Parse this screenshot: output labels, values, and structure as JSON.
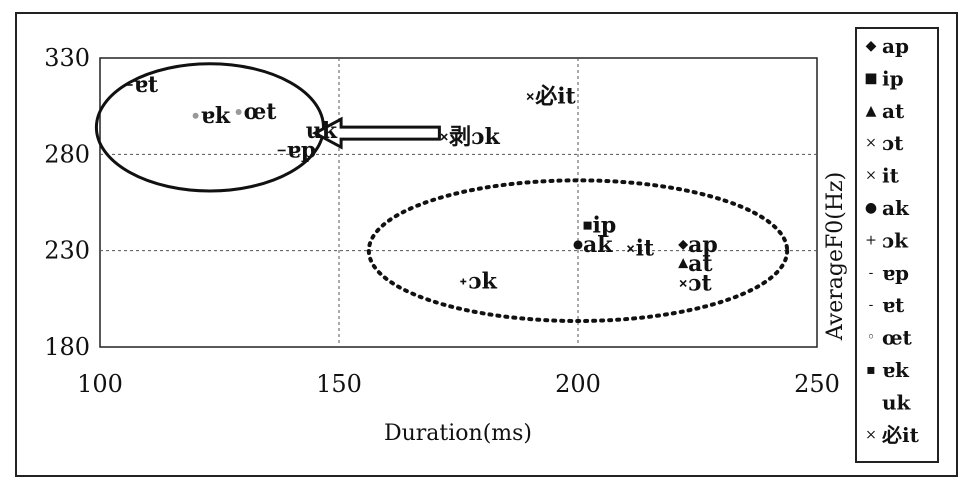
{
  "chart_data": {
    "type": "scatter",
    "xlabel": "Duration(ms)",
    "ylabel": "AverageF0(Hz)",
    "xlim": [
      100,
      250
    ],
    "ylim": [
      180,
      330
    ],
    "x_ticks": [
      100,
      150,
      200,
      250
    ],
    "y_ticks": [
      180,
      230,
      280,
      330
    ],
    "grid": "dashed at x=150, x=200, y=280, y=230",
    "legend_position": "right, outside plot",
    "series": [
      {
        "name": "ap",
        "marker": "diamond",
        "points": [
          {
            "x": 222,
            "y": 233,
            "label": "ap"
          }
        ]
      },
      {
        "name": "ip",
        "marker": "square",
        "points": [
          {
            "x": 202,
            "y": 243,
            "label": "ip"
          }
        ]
      },
      {
        "name": "at",
        "marker": "triangle",
        "points": [
          {
            "x": 222,
            "y": 223,
            "label": "at"
          }
        ]
      },
      {
        "name": "ɔt",
        "marker": "x",
        "points": [
          {
            "x": 222,
            "y": 213,
            "label": "ɔt"
          }
        ]
      },
      {
        "name": "it",
        "marker": "x",
        "points": [
          {
            "x": 211,
            "y": 231,
            "label": "it"
          }
        ]
      },
      {
        "name": "ak",
        "marker": "circle",
        "points": [
          {
            "x": 200,
            "y": 233,
            "label": "ak"
          }
        ]
      },
      {
        "name": "ɔk",
        "marker": "plus",
        "points": [
          {
            "x": 176,
            "y": 214,
            "label": "ɔk"
          }
        ]
      },
      {
        "name": "ɐp",
        "marker": "dash",
        "points": [
          {
            "x": 138,
            "y": 282,
            "label": "ɐp"
          }
        ]
      },
      {
        "name": "ɐt",
        "marker": "dash",
        "points": [
          {
            "x": 106,
            "y": 316,
            "label": "ɐt"
          }
        ]
      },
      {
        "name": "œt",
        "marker": "dot",
        "points": [
          {
            "x": 129,
            "y": 302,
            "label": "œt"
          }
        ]
      },
      {
        "name": "ɐk",
        "marker": "dot",
        "points": [
          {
            "x": 120,
            "y": 300,
            "label": "ɐk"
          }
        ]
      },
      {
        "name": "uk",
        "marker": "none",
        "points": [
          {
            "x": 142,
            "y": 292,
            "label": "uk"
          }
        ]
      },
      {
        "name": "必it",
        "marker": "x",
        "points": [
          {
            "x": 190,
            "y": 310,
            "label": "必it"
          }
        ]
      },
      {
        "name": "剥ɔk",
        "marker": "x",
        "points": [
          {
            "x": 172,
            "y": 289,
            "label": "剥ɔk"
          }
        ]
      }
    ],
    "legend_items": [
      {
        "symbol": "◆",
        "label": "ap"
      },
      {
        "symbol": "■",
        "label": "ip"
      },
      {
        "symbol": "▲",
        "label": "at"
      },
      {
        "symbol": "×",
        "label": "ɔt"
      },
      {
        "symbol": "×",
        "label": "it"
      },
      {
        "symbol": "●",
        "label": "ak"
      },
      {
        "symbol": "+",
        "label": "ɔk"
      },
      {
        "symbol": "-",
        "label": "ɐp"
      },
      {
        "symbol": "-",
        "label": "ɐt"
      },
      {
        "symbol": "◦",
        "label": "œt"
      },
      {
        "symbol": "▪",
        "label": "ɐk"
      },
      {
        "symbol": "",
        "label": "uk"
      },
      {
        "symbol": "×",
        "label": "必it"
      }
    ],
    "annotations": [
      {
        "type": "ellipse",
        "style": "solid",
        "encloses": [
          "ɐt",
          "ɐk",
          "œt",
          "uk",
          "ɐp"
        ]
      },
      {
        "type": "ellipse",
        "style": "dotted",
        "encloses": [
          "ip",
          "ak",
          "it",
          "ap",
          "at",
          "ɔt",
          "ɔk"
        ]
      },
      {
        "type": "arrow",
        "style": "hollow",
        "from": "剥ɔk",
        "to": "uk"
      }
    ]
  }
}
